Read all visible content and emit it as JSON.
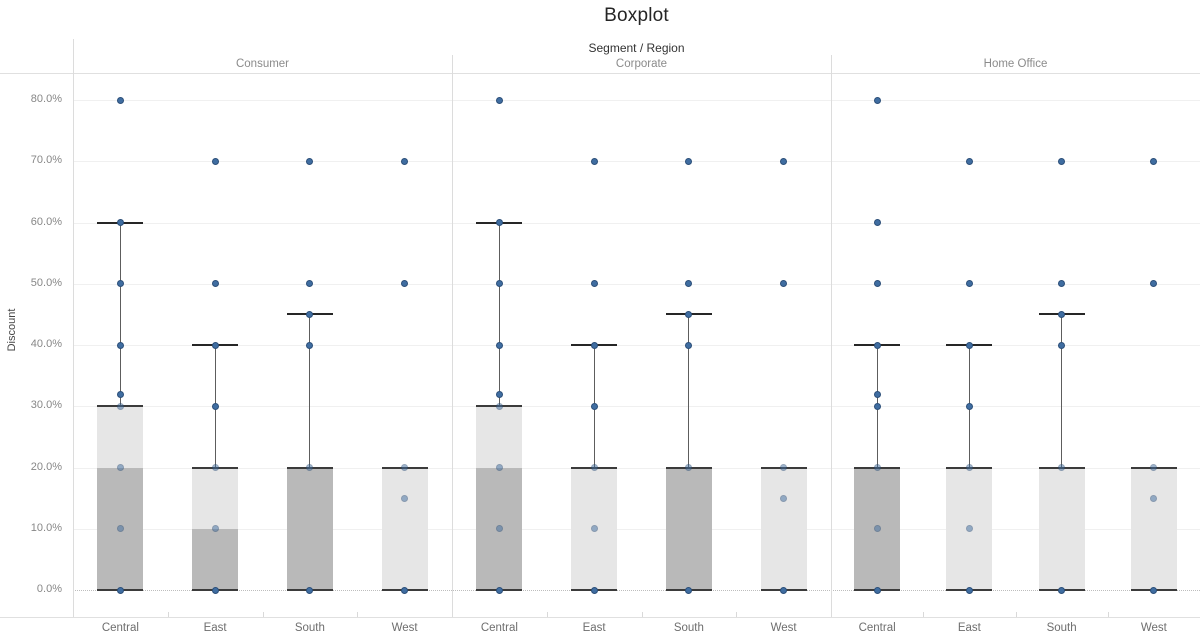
{
  "title": "Boxplot",
  "header": {
    "column_field_label": "Segment / Region"
  },
  "y_axis": {
    "title": "Discount",
    "tick_labels": [
      "0.0%",
      "10.0%",
      "20.0%",
      "30.0%",
      "40.0%",
      "50.0%",
      "60.0%",
      "70.0%",
      "80.0%"
    ],
    "tick_values": [
      0,
      10,
      20,
      30,
      40,
      50,
      60,
      70,
      80
    ]
  },
  "chart_data": {
    "type": "boxplot",
    "title": "Boxplot",
    "column_header": "Segment / Region",
    "ylabel": "Discount",
    "y_unit": "%",
    "ylim": [
      0,
      80
    ],
    "y_ticks": [
      0,
      10,
      20,
      30,
      40,
      50,
      60,
      70,
      80
    ],
    "grid": "horizontal, zero line dotted",
    "colors": {
      "box_lower_fill": "#b9b9b9",
      "box_upper_fill": "#e6e6e6",
      "box_edge": "#3b3b3b",
      "whisker": "#5d5d5d",
      "point_fill": "#3f6da1",
      "point_border": "#2c4f79",
      "gridline": "#f0f0f0",
      "panel_border": "#dcdcdc",
      "tick_text": "#878787"
    },
    "segments": [
      {
        "label": "Consumer",
        "regions": [
          {
            "label": "Central",
            "q1": 0,
            "median": 20,
            "q3": 30,
            "whisker_low": 0,
            "whisker_high": 60,
            "points": [
              {
                "v": 0,
                "dim": false
              },
              {
                "v": 10,
                "dim": true
              },
              {
                "v": 20,
                "dim": true
              },
              {
                "v": 30,
                "dim": true
              },
              {
                "v": 32,
                "dim": false
              },
              {
                "v": 40,
                "dim": false
              },
              {
                "v": 50,
                "dim": false
              },
              {
                "v": 60,
                "dim": false
              },
              {
                "v": 80,
                "dim": false
              }
            ]
          },
          {
            "label": "East",
            "q1": 0,
            "median": 10,
            "q3": 20,
            "whisker_low": 0,
            "whisker_high": 40,
            "points": [
              {
                "v": 0,
                "dim": false
              },
              {
                "v": 10,
                "dim": true
              },
              {
                "v": 20,
                "dim": true
              },
              {
                "v": 30,
                "dim": false
              },
              {
                "v": 40,
                "dim": false
              },
              {
                "v": 50,
                "dim": false
              },
              {
                "v": 70,
                "dim": false
              }
            ]
          },
          {
            "label": "South",
            "q1": 0,
            "median": 20,
            "q3": 20,
            "whisker_low": 0,
            "whisker_high": 45,
            "points": [
              {
                "v": 0,
                "dim": false
              },
              {
                "v": 20,
                "dim": true
              },
              {
                "v": 40,
                "dim": false
              },
              {
                "v": 45,
                "dim": false
              },
              {
                "v": 50,
                "dim": false
              },
              {
                "v": 70,
                "dim": false
              }
            ]
          },
          {
            "label": "West",
            "q1": 0,
            "median": 0,
            "q3": 20,
            "whisker_low": 0,
            "whisker_high": 20,
            "points": [
              {
                "v": 0,
                "dim": false
              },
              {
                "v": 15,
                "dim": true
              },
              {
                "v": 20,
                "dim": true
              },
              {
                "v": 50,
                "dim": false
              },
              {
                "v": 70,
                "dim": false
              }
            ]
          }
        ]
      },
      {
        "label": "Corporate",
        "regions": [
          {
            "label": "Central",
            "q1": 0,
            "median": 20,
            "q3": 30,
            "whisker_low": 0,
            "whisker_high": 60,
            "points": [
              {
                "v": 0,
                "dim": false
              },
              {
                "v": 10,
                "dim": true
              },
              {
                "v": 20,
                "dim": true
              },
              {
                "v": 30,
                "dim": true
              },
              {
                "v": 32,
                "dim": false
              },
              {
                "v": 40,
                "dim": false
              },
              {
                "v": 50,
                "dim": false
              },
              {
                "v": 60,
                "dim": false
              },
              {
                "v": 80,
                "dim": false
              }
            ]
          },
          {
            "label": "East",
            "q1": 0,
            "median": 0,
            "q3": 20,
            "whisker_low": 0,
            "whisker_high": 40,
            "points": [
              {
                "v": 0,
                "dim": false
              },
              {
                "v": 10,
                "dim": true
              },
              {
                "v": 20,
                "dim": true
              },
              {
                "v": 30,
                "dim": false
              },
              {
                "v": 40,
                "dim": false
              },
              {
                "v": 50,
                "dim": false
              },
              {
                "v": 70,
                "dim": false
              }
            ]
          },
          {
            "label": "South",
            "q1": 0,
            "median": 20,
            "q3": 20,
            "whisker_low": 0,
            "whisker_high": 45,
            "points": [
              {
                "v": 0,
                "dim": false
              },
              {
                "v": 20,
                "dim": true
              },
              {
                "v": 40,
                "dim": false
              },
              {
                "v": 45,
                "dim": false
              },
              {
                "v": 50,
                "dim": false
              },
              {
                "v": 70,
                "dim": false
              }
            ]
          },
          {
            "label": "West",
            "q1": 0,
            "median": 0,
            "q3": 20,
            "whisker_low": 0,
            "whisker_high": 20,
            "points": [
              {
                "v": 0,
                "dim": false
              },
              {
                "v": 15,
                "dim": true
              },
              {
                "v": 20,
                "dim": true
              },
              {
                "v": 50,
                "dim": false
              },
              {
                "v": 70,
                "dim": false
              }
            ]
          }
        ]
      },
      {
        "label": "Home Office",
        "regions": [
          {
            "label": "Central",
            "q1": 0,
            "median": 20,
            "q3": 20,
            "whisker_low": 0,
            "whisker_high": 40,
            "points": [
              {
                "v": 0,
                "dim": false
              },
              {
                "v": 10,
                "dim": true
              },
              {
                "v": 20,
                "dim": true
              },
              {
                "v": 30,
                "dim": false
              },
              {
                "v": 32,
                "dim": false
              },
              {
                "v": 40,
                "dim": false
              },
              {
                "v": 50,
                "dim": false
              },
              {
                "v": 60,
                "dim": false
              },
              {
                "v": 80,
                "dim": false
              }
            ]
          },
          {
            "label": "East",
            "q1": 0,
            "median": 0,
            "q3": 20,
            "whisker_low": 0,
            "whisker_high": 40,
            "points": [
              {
                "v": 0,
                "dim": false
              },
              {
                "v": 10,
                "dim": true
              },
              {
                "v": 20,
                "dim": true
              },
              {
                "v": 30,
                "dim": false
              },
              {
                "v": 40,
                "dim": false
              },
              {
                "v": 50,
                "dim": false
              },
              {
                "v": 70,
                "dim": false
              }
            ]
          },
          {
            "label": "South",
            "q1": 0,
            "median": 0,
            "q3": 20,
            "whisker_low": 0,
            "whisker_high": 45,
            "points": [
              {
                "v": 0,
                "dim": false
              },
              {
                "v": 20,
                "dim": true
              },
              {
                "v": 40,
                "dim": false
              },
              {
                "v": 45,
                "dim": false
              },
              {
                "v": 50,
                "dim": false
              },
              {
                "v": 70,
                "dim": false
              }
            ]
          },
          {
            "label": "West",
            "q1": 0,
            "median": 0,
            "q3": 20,
            "whisker_low": 0,
            "whisker_high": 20,
            "points": [
              {
                "v": 0,
                "dim": false
              },
              {
                "v": 15,
                "dim": true
              },
              {
                "v": 20,
                "dim": true
              },
              {
                "v": 50,
                "dim": false
              },
              {
                "v": 70,
                "dim": false
              }
            ]
          }
        ]
      }
    ]
  }
}
